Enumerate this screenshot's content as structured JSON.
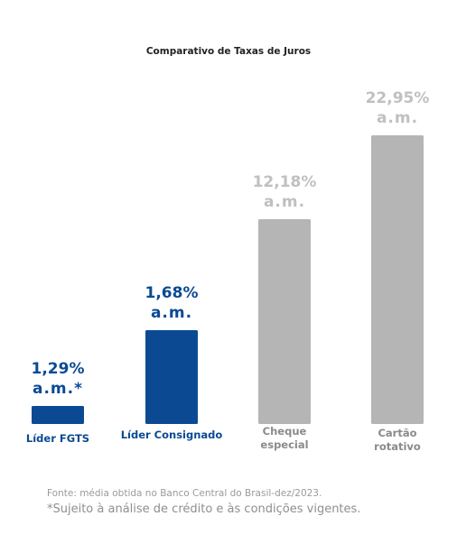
{
  "chart_data": {
    "type": "bar",
    "title": "Comparativo de Taxas de Juros",
    "categories": [
      "Líder FGTS",
      "Líder Consignado",
      "Cheque especial",
      "Cartão rotativo"
    ],
    "category_lines": [
      [
        "Líder FGTS"
      ],
      [
        "Líder Consignado"
      ],
      [
        "Cheque",
        "especial"
      ],
      [
        "Cartão",
        "rotativo"
      ]
    ],
    "values": [
      1.29,
      1.68,
      12.18,
      22.95
    ],
    "value_labels": [
      [
        "1,29%",
        "a.m.*"
      ],
      [
        "1,68%",
        "a.m."
      ],
      [
        "12,18%",
        "a.m."
      ],
      [
        "22,95%",
        "a.m."
      ]
    ],
    "unit": "% a.m.",
    "colors": [
      "#0b4a93",
      "#0b4a93",
      "#b5b5b5",
      "#b5b5b5"
    ],
    "label_colors": [
      "#0b4a93",
      "#0b4a93",
      "#c0c0c0",
      "#c0c0c0"
    ],
    "category_label_colors": [
      "#0b4a93",
      "#0b4a93",
      "#8a8a8a",
      "#8a8a8a"
    ],
    "grid": false,
    "legend": "none"
  },
  "footer": {
    "source": "Fonte: média obtida no Banco Central do Brasil-dez/2023.",
    "disclaimer": "*Sujeito à análise de crédito e às condições vigentes."
  }
}
